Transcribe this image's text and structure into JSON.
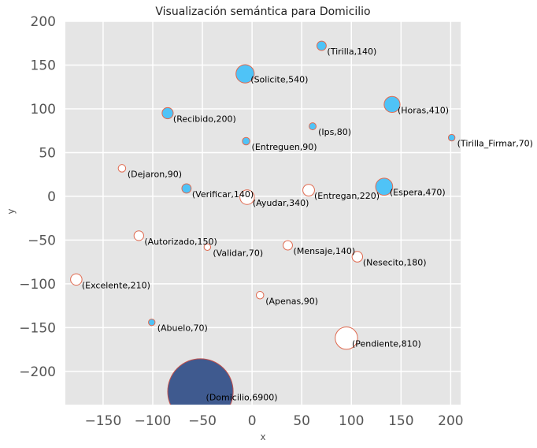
{
  "chart_data": {
    "type": "scatter",
    "title": "Visualización semántica para Domicilio",
    "xlabel": "x",
    "ylabel": "y",
    "xlim": [
      -188,
      210
    ],
    "ylim": [
      -238,
      200
    ],
    "xticks": [
      -150,
      -100,
      -50,
      0,
      50,
      100,
      150,
      200
    ],
    "yticks": [
      -200,
      -150,
      -100,
      -50,
      0,
      50,
      100,
      150,
      200
    ],
    "xtick_labels": [
      "−150",
      "−100",
      "−50",
      "0",
      "50",
      "100",
      "150",
      "200"
    ],
    "ytick_labels": [
      "−200",
      "−150",
      "−100",
      "−50",
      "0",
      "50",
      "100",
      "150",
      "200"
    ],
    "grid": true,
    "background": "#e5e5e5",
    "colors": {
      "filled": "#4fc3f7",
      "hollow": "#ffffff",
      "edge": "#e06a50",
      "focus": "#3f5a8f"
    },
    "points": [
      {
        "word": "Tirilla",
        "value": 140,
        "x": 70,
        "y": 172,
        "style": "filled",
        "label": "(Tirilla,140)"
      },
      {
        "word": "Solicite",
        "value": 540,
        "x": -7,
        "y": 140,
        "style": "filled",
        "label": "(Solicite,540)"
      },
      {
        "word": "Horas",
        "value": 410,
        "x": 141,
        "y": 105,
        "style": "filled",
        "label": "(Horas,410)"
      },
      {
        "word": "Recibido",
        "value": 200,
        "x": -85,
        "y": 95,
        "style": "filled",
        "label": "(Recibido,200)"
      },
      {
        "word": "Ips",
        "value": 80,
        "x": 61,
        "y": 80,
        "style": "filled",
        "label": "(Ips,80)"
      },
      {
        "word": "Tirilla_Firmar",
        "value": 70,
        "x": 201,
        "y": 67,
        "style": "filled",
        "label": "(Tirilla_Firmar,70)"
      },
      {
        "word": "Entreguen",
        "value": 90,
        "x": -6,
        "y": 63,
        "style": "filled",
        "label": "(Entreguen,90)"
      },
      {
        "word": "Dejaron",
        "value": 90,
        "x": -131,
        "y": 32,
        "style": "hollow",
        "label": "(Dejaron,90)"
      },
      {
        "word": "Verificar",
        "value": 140,
        "x": -66,
        "y": 9,
        "style": "filled",
        "label": "(Verificar,140)"
      },
      {
        "word": "Espera",
        "value": 470,
        "x": 133,
        "y": 11,
        "style": "filled",
        "label": "(Espera,470)"
      },
      {
        "word": "Entregan",
        "value": 220,
        "x": 57,
        "y": 7,
        "style": "hollow",
        "label": "(Entregan,220)"
      },
      {
        "word": "Ayudar",
        "value": 340,
        "x": -5,
        "y": -1,
        "style": "hollow",
        "label": "(Ayudar,340)"
      },
      {
        "word": "Autorizado",
        "value": 150,
        "x": -114,
        "y": -45,
        "style": "hollow",
        "label": "(Autorizado,150)"
      },
      {
        "word": "Validar",
        "value": 70,
        "x": -45,
        "y": -58,
        "style": "hollow",
        "label": "(Validar,70)"
      },
      {
        "word": "Mensaje",
        "value": 140,
        "x": 36,
        "y": -56,
        "style": "hollow",
        "label": "(Mensaje,140)"
      },
      {
        "word": "Nesecito",
        "value": 180,
        "x": 106,
        "y": -69,
        "style": "hollow",
        "label": "(Nesecito,180)"
      },
      {
        "word": "Excelente",
        "value": 210,
        "x": -177,
        "y": -95,
        "style": "hollow",
        "label": "(Excelente,210)"
      },
      {
        "word": "Apenas",
        "value": 90,
        "x": 8,
        "y": -113,
        "style": "hollow",
        "label": "(Apenas,90)"
      },
      {
        "word": "Abuelo",
        "value": 70,
        "x": -101,
        "y": -144,
        "style": "filled",
        "label": "(Abuelo,70)"
      },
      {
        "word": "Pendiente",
        "value": 810,
        "x": 95,
        "y": -162,
        "style": "hollow",
        "label": "(Pendiente,810)"
      },
      {
        "word": "Domicilio",
        "value": 6900,
        "x": -52,
        "y": -223,
        "style": "focus",
        "label": "(Domicilio,6900)"
      }
    ]
  }
}
